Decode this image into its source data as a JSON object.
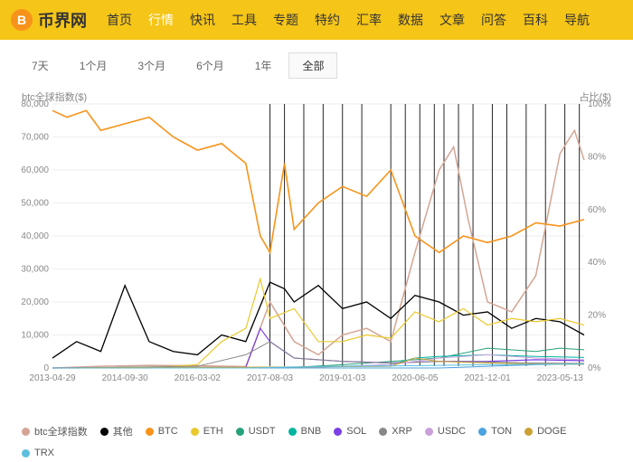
{
  "header": {
    "logo_char": "B",
    "logo_text": "币界网",
    "nav": [
      "首页",
      "行情",
      "快讯",
      "工具",
      "专题",
      "特约",
      "汇率",
      "数据",
      "文章",
      "问答",
      "百科",
      "导航"
    ],
    "nav_active": 1
  },
  "tabs": {
    "items": [
      "7天",
      "1个月",
      "3个月",
      "6个月",
      "1年",
      "全部"
    ],
    "active": 5
  },
  "chart": {
    "type": "line",
    "left_axis_title": "btc全球指数($)",
    "right_axis_title": "占比($)",
    "background_color": "#ffffff",
    "grid_color": "#eeeeee",
    "ylim_left": [
      0,
      80000
    ],
    "ytick_left": [
      0,
      10000,
      20000,
      30000,
      40000,
      50000,
      60000,
      70000,
      80000
    ],
    "ytick_left_labels": [
      "0",
      "10,000",
      "20,000",
      "30,000",
      "40,000",
      "50,000",
      "60,000",
      "70,000",
      "80,000"
    ],
    "ylim_right": [
      0,
      100
    ],
    "ytick_right": [
      0,
      20,
      40,
      60,
      80,
      100
    ],
    "ytick_right_labels": [
      "0%",
      "20%",
      "40%",
      "60%",
      "80%",
      "100%"
    ],
    "xlim": [
      0,
      11
    ],
    "xtick_labels": [
      "2013-04-29",
      "2014-09-30",
      "2016-03-02",
      "2017-08-03",
      "2019-01-03",
      "2020-06-05",
      "2021-12-01",
      "2023-05-13"
    ],
    "xtick_pos": [
      0,
      1.5,
      3,
      4.5,
      6,
      7.5,
      9,
      10.5
    ],
    "label_fontsize": 10,
    "line_width": 1.2,
    "series": [
      {
        "name": "btc全球指数",
        "color": "#d4a594",
        "width": 1.5,
        "data": [
          [
            0,
            0
          ],
          [
            1,
            500
          ],
          [
            2,
            800
          ],
          [
            3,
            700
          ],
          [
            4,
            400
          ],
          [
            4.5,
            20000
          ],
          [
            5,
            8000
          ],
          [
            5.5,
            4000
          ],
          [
            6,
            10000
          ],
          [
            6.5,
            12000
          ],
          [
            7,
            8000
          ],
          [
            7.5,
            35000
          ],
          [
            8,
            60000
          ],
          [
            8.3,
            67000
          ],
          [
            8.6,
            45000
          ],
          [
            9,
            20000
          ],
          [
            9.5,
            17000
          ],
          [
            10,
            28000
          ],
          [
            10.5,
            65000
          ],
          [
            10.8,
            72000
          ],
          [
            11,
            63000
          ]
        ]
      },
      {
        "name": "其他",
        "color": "#000000",
        "width": 1.3,
        "data": [
          [
            0,
            3000
          ],
          [
            0.5,
            8000
          ],
          [
            1,
            5000
          ],
          [
            1.5,
            25000
          ],
          [
            2,
            8000
          ],
          [
            2.5,
            5000
          ],
          [
            3,
            4000
          ],
          [
            3.5,
            10000
          ],
          [
            4,
            8000
          ],
          [
            4.5,
            26000
          ],
          [
            4.8,
            24000
          ],
          [
            5,
            20000
          ],
          [
            5.5,
            25000
          ],
          [
            6,
            18000
          ],
          [
            6.5,
            20000
          ],
          [
            7,
            15000
          ],
          [
            7.5,
            22000
          ],
          [
            8,
            20000
          ],
          [
            8.5,
            16000
          ],
          [
            9,
            17000
          ],
          [
            9.5,
            12000
          ],
          [
            10,
            15000
          ],
          [
            10.5,
            14000
          ],
          [
            11,
            10000
          ]
        ]
      },
      {
        "name": "BTC",
        "color": "#f7931a",
        "width": 1.6,
        "data": [
          [
            0,
            78000
          ],
          [
            0.3,
            76000
          ],
          [
            0.7,
            78000
          ],
          [
            1,
            72000
          ],
          [
            1.5,
            74000
          ],
          [
            2,
            76000
          ],
          [
            2.5,
            70000
          ],
          [
            3,
            66000
          ],
          [
            3.5,
            68000
          ],
          [
            4,
            62000
          ],
          [
            4.3,
            40000
          ],
          [
            4.5,
            35000
          ],
          [
            4.8,
            62000
          ],
          [
            5,
            42000
          ],
          [
            5.5,
            50000
          ],
          [
            6,
            55000
          ],
          [
            6.5,
            52000
          ],
          [
            7,
            60000
          ],
          [
            7.5,
            40000
          ],
          [
            8,
            35000
          ],
          [
            8.5,
            40000
          ],
          [
            9,
            38000
          ],
          [
            9.5,
            40000
          ],
          [
            10,
            44000
          ],
          [
            10.5,
            43000
          ],
          [
            11,
            45000
          ]
        ]
      },
      {
        "name": "ETH",
        "color": "#eac92e",
        "width": 1.2,
        "data": [
          [
            0,
            0
          ],
          [
            2,
            0
          ],
          [
            3,
            1000
          ],
          [
            3.5,
            8000
          ],
          [
            4,
            12000
          ],
          [
            4.3,
            27000
          ],
          [
            4.5,
            15000
          ],
          [
            5,
            18000
          ],
          [
            5.5,
            8000
          ],
          [
            6,
            8000
          ],
          [
            6.5,
            10000
          ],
          [
            7,
            9000
          ],
          [
            7.5,
            17000
          ],
          [
            8,
            14000
          ],
          [
            8.5,
            18000
          ],
          [
            9,
            13000
          ],
          [
            9.5,
            15000
          ],
          [
            10,
            14000
          ],
          [
            10.5,
            15000
          ],
          [
            11,
            13000
          ]
        ]
      },
      {
        "name": "USDT",
        "color": "#26a17b",
        "width": 1,
        "data": [
          [
            0,
            0
          ],
          [
            3,
            0
          ],
          [
            4,
            100
          ],
          [
            5,
            200
          ],
          [
            6,
            1000
          ],
          [
            7,
            2000
          ],
          [
            8,
            3000
          ],
          [
            9,
            6000
          ],
          [
            10,
            5000
          ],
          [
            10.5,
            6000
          ],
          [
            11,
            5500
          ]
        ]
      },
      {
        "name": "BNB",
        "color": "#00b4a0",
        "width": 1,
        "data": [
          [
            0,
            0
          ],
          [
            4,
            0
          ],
          [
            5,
            200
          ],
          [
            6,
            500
          ],
          [
            7,
            1000
          ],
          [
            7.5,
            3000
          ],
          [
            8,
            3500
          ],
          [
            9,
            4000
          ],
          [
            10,
            3500
          ],
          [
            11,
            3200
          ]
        ]
      },
      {
        "name": "SOL",
        "color": "#7b3fe4",
        "width": 1.2,
        "data": [
          [
            0,
            0
          ],
          [
            4,
            200
          ],
          [
            4.3,
            12000
          ],
          [
            4.5,
            8000
          ],
          [
            4.8,
            5000
          ],
          [
            5,
            3000
          ],
          [
            6,
            2000
          ],
          [
            7,
            1500
          ],
          [
            8,
            2000
          ],
          [
            9,
            2000
          ],
          [
            10,
            2500
          ],
          [
            11,
            2200
          ]
        ]
      },
      {
        "name": "XRP",
        "color": "#888888",
        "width": 1,
        "data": [
          [
            0,
            0
          ],
          [
            3,
            500
          ],
          [
            4,
            4000
          ],
          [
            4.5,
            8000
          ],
          [
            5,
            3000
          ],
          [
            6,
            2000
          ],
          [
            7,
            1500
          ],
          [
            8,
            2000
          ],
          [
            9,
            1800
          ],
          [
            10,
            1500
          ],
          [
            11,
            1400
          ]
        ]
      },
      {
        "name": "USDC",
        "color": "#c9a0dc",
        "width": 1,
        "data": [
          [
            0,
            0
          ],
          [
            5,
            0
          ],
          [
            6,
            500
          ],
          [
            7,
            1000
          ],
          [
            8,
            3000
          ],
          [
            9,
            4000
          ],
          [
            10,
            3000
          ],
          [
            11,
            2500
          ]
        ]
      },
      {
        "name": "TON",
        "color": "#4aa3df",
        "width": 1,
        "data": [
          [
            0,
            0
          ],
          [
            8,
            0
          ],
          [
            9,
            500
          ],
          [
            10,
            1000
          ],
          [
            11,
            1200
          ]
        ]
      },
      {
        "name": "DOGE",
        "color": "#cba135",
        "width": 1,
        "data": [
          [
            0,
            0
          ],
          [
            3,
            200
          ],
          [
            5,
            300
          ],
          [
            7,
            500
          ],
          [
            7.5,
            3000
          ],
          [
            8,
            2000
          ],
          [
            9,
            1500
          ],
          [
            10,
            1200
          ],
          [
            11,
            1100
          ]
        ]
      },
      {
        "name": "TRX",
        "color": "#5bc0de",
        "width": 1,
        "data": [
          [
            0,
            0
          ],
          [
            4,
            0
          ],
          [
            5,
            300
          ],
          [
            6,
            500
          ],
          [
            7,
            600
          ],
          [
            8,
            800
          ],
          [
            9,
            1000
          ],
          [
            10,
            1100
          ],
          [
            11,
            1200
          ]
        ]
      }
    ],
    "vertical_spikes": {
      "color": "#000000",
      "positions": [
        4.5,
        4.8,
        5.2,
        5.6,
        6.0,
        6.4,
        7.0,
        7.3,
        7.6,
        7.9,
        8.1,
        8.4,
        8.7,
        9.1,
        9.4,
        9.8,
        10.2,
        10.6,
        10.9
      ]
    }
  },
  "legend_items": [
    {
      "label": "btc全球指数",
      "color": "#d4a594"
    },
    {
      "label": "其他",
      "color": "#000000"
    },
    {
      "label": "BTC",
      "color": "#f7931a"
    },
    {
      "label": "ETH",
      "color": "#eac92e"
    },
    {
      "label": "USDT",
      "color": "#26a17b"
    },
    {
      "label": "BNB",
      "color": "#00b4a0"
    },
    {
      "label": "SOL",
      "color": "#7b3fe4"
    },
    {
      "label": "XRP",
      "color": "#888888"
    },
    {
      "label": "USDC",
      "color": "#c9a0dc"
    },
    {
      "label": "TON",
      "color": "#4aa3df"
    },
    {
      "label": "DOGE",
      "color": "#cba135"
    },
    {
      "label": "TRX",
      "color": "#5bc0de"
    }
  ]
}
